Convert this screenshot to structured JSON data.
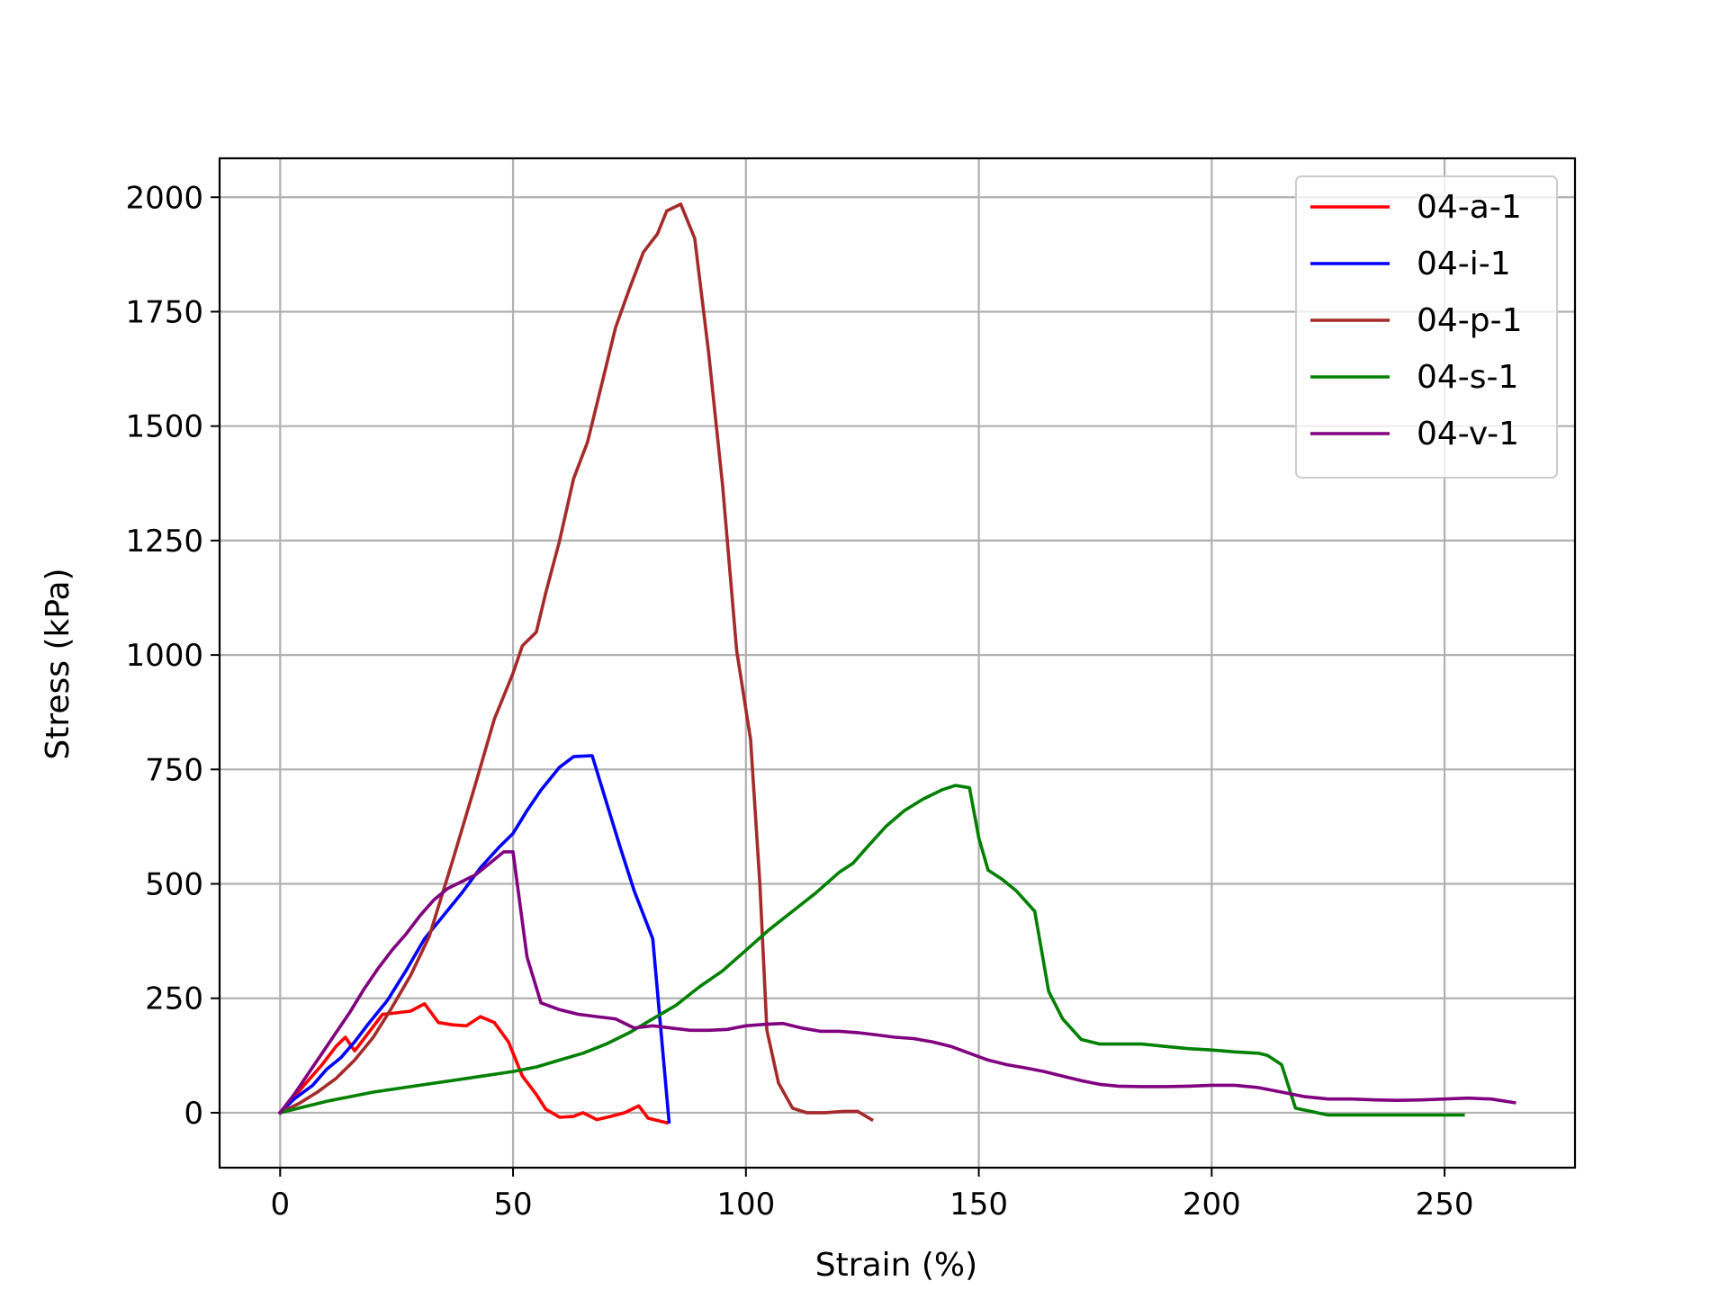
{
  "chart_data": {
    "type": "line",
    "title": "",
    "xlabel": "Strain (%)",
    "ylabel": "Stress (kPa)",
    "xlim": [
      -13,
      278
    ],
    "ylim": [
      -120,
      2085
    ],
    "xticks": [
      0,
      50,
      100,
      150,
      200,
      250
    ],
    "yticks": [
      0,
      250,
      500,
      750,
      1000,
      1250,
      1500,
      1750,
      2000
    ],
    "xtick_labels": [
      "0",
      "50",
      "100",
      "150",
      "200",
      "250"
    ],
    "ytick_labels": [
      "0",
      "250",
      "500",
      "750",
      "1000",
      "1250",
      "1500",
      "1750",
      "2000"
    ],
    "grid": true,
    "legend_position": "top-right",
    "series": [
      {
        "name": "04-a-1",
        "color": "#ff0000",
        "x": [
          0,
          3,
          6,
          9,
          12,
          14,
          16,
          19,
          22,
          24,
          28,
          31,
          34,
          37,
          40,
          43,
          46,
          49,
          52,
          55,
          57,
          60,
          63,
          65,
          68,
          71,
          74,
          77,
          79,
          83
        ],
        "y": [
          0,
          35,
          70,
          105,
          145,
          165,
          135,
          175,
          215,
          217,
          222,
          238,
          197,
          192,
          190,
          210,
          197,
          155,
          80,
          40,
          8,
          -10,
          -8,
          0,
          -15,
          -8,
          0,
          15,
          -12,
          -22
        ]
      },
      {
        "name": "04-i-1",
        "color": "#0000ff",
        "x": [
          0,
          3,
          7,
          10,
          13,
          16,
          19,
          23,
          27,
          31,
          35,
          39,
          43,
          47,
          50,
          53,
          56,
          60,
          63,
          67,
          70,
          73,
          76,
          80,
          83.5
        ],
        "y": [
          0,
          30,
          60,
          95,
          120,
          155,
          195,
          245,
          310,
          380,
          430,
          480,
          535,
          580,
          610,
          660,
          705,
          755,
          778,
          780,
          680,
          580,
          485,
          380,
          -20
        ]
      },
      {
        "name": "04-p-1",
        "color": "#a52a2a",
        "x": [
          0,
          4,
          8,
          12,
          16,
          20,
          24,
          28,
          32,
          37,
          42,
          46,
          50,
          52,
          55,
          57,
          60,
          63,
          66,
          69,
          72,
          75,
          78,
          81,
          83,
          86,
          89,
          92,
          95,
          98,
          101,
          103,
          104.5,
          107,
          110,
          113,
          117,
          121,
          124,
          127
        ],
        "y": [
          0,
          20,
          45,
          75,
          115,
          165,
          230,
          300,
          385,
          550,
          720,
          860,
          960,
          1020,
          1050,
          1135,
          1250,
          1385,
          1465,
          1590,
          1715,
          1800,
          1880,
          1920,
          1970,
          1985,
          1910,
          1660,
          1370,
          1010,
          815,
          500,
          180,
          65,
          10,
          0,
          0,
          3,
          3,
          -15
        ]
      },
      {
        "name": "04-s-1",
        "color": "#008000",
        "x": [
          0,
          10,
          20,
          30,
          40,
          50,
          55,
          60,
          65,
          70,
          75,
          80,
          85,
          90,
          95,
          100,
          105,
          110,
          115,
          120,
          123,
          126,
          130,
          134,
          138,
          142,
          145,
          148,
          150,
          152,
          155,
          158,
          162,
          165,
          168,
          172,
          176,
          180,
          185,
          190,
          195,
          200,
          205,
          210,
          212,
          215,
          218,
          225,
          235,
          245,
          254
        ],
        "y": [
          0,
          25,
          45,
          60,
          75,
          90,
          100,
          115,
          130,
          150,
          175,
          205,
          235,
          275,
          310,
          355,
          400,
          440,
          480,
          525,
          545,
          580,
          625,
          660,
          685,
          705,
          715,
          710,
          600,
          530,
          510,
          485,
          440,
          265,
          205,
          160,
          150,
          150,
          150,
          145,
          140,
          137,
          133,
          130,
          125,
          105,
          10,
          -5,
          -5,
          -5,
          -5
        ]
      },
      {
        "name": "04-v-1",
        "color": "#800080",
        "x": [
          0,
          3,
          6,
          9,
          12,
          15,
          18,
          21,
          24,
          27,
          30,
          33,
          36,
          39,
          42,
          45,
          48,
          50,
          53,
          56,
          60,
          64,
          68,
          72,
          76,
          80,
          84,
          88,
          92,
          96,
          100,
          104,
          108,
          112,
          116,
          120,
          124,
          128,
          132,
          136,
          140,
          144,
          148,
          152,
          156,
          160,
          164,
          168,
          172,
          176,
          180,
          185,
          190,
          195,
          200,
          205,
          210,
          215,
          220,
          225,
          230,
          235,
          240,
          245,
          250,
          255,
          260,
          265
        ],
        "y": [
          0,
          40,
          85,
          130,
          175,
          220,
          270,
          315,
          355,
          390,
          430,
          465,
          490,
          505,
          520,
          545,
          570,
          570,
          340,
          240,
          225,
          215,
          210,
          205,
          185,
          190,
          185,
          180,
          180,
          182,
          190,
          193,
          195,
          185,
          178,
          178,
          175,
          170,
          165,
          162,
          155,
          145,
          130,
          115,
          105,
          98,
          90,
          80,
          70,
          62,
          58,
          57,
          57,
          58,
          60,
          60,
          55,
          45,
          35,
          30,
          30,
          28,
          27,
          28,
          30,
          32,
          30,
          22
        ]
      }
    ]
  }
}
